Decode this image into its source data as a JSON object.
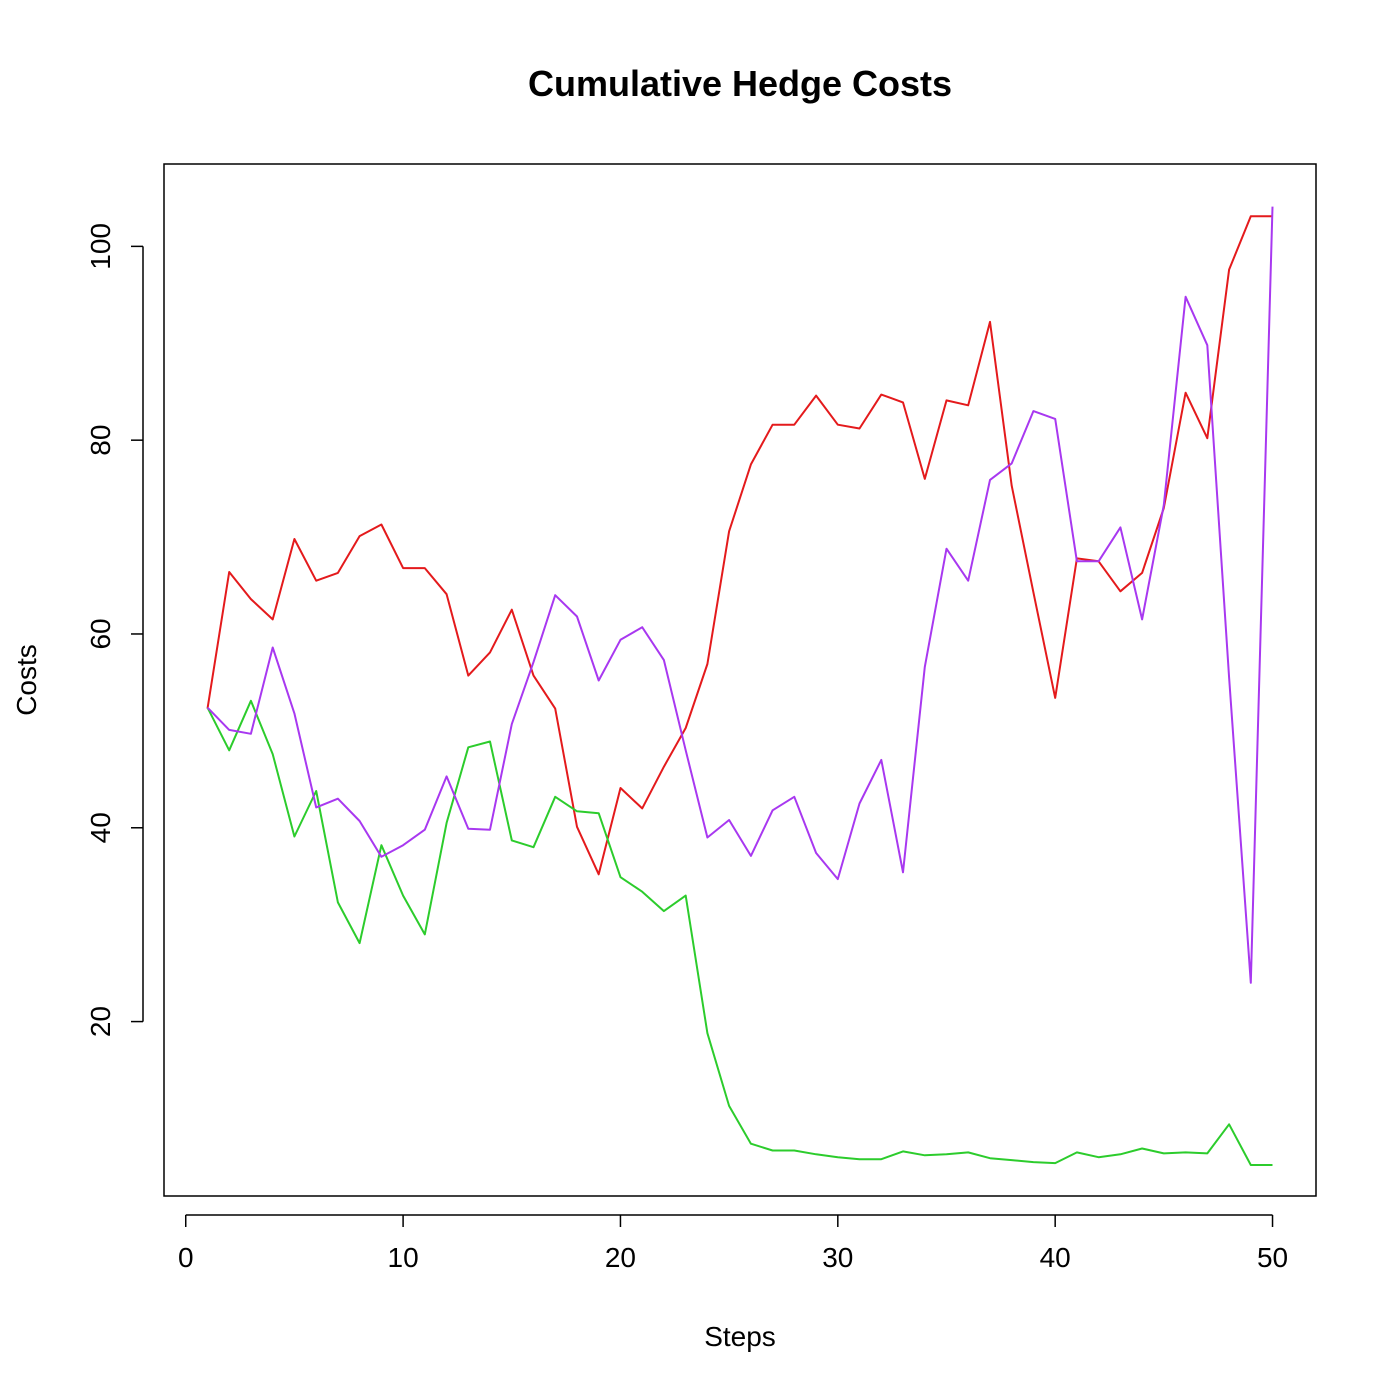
{
  "chart_data": {
    "type": "line",
    "title": "Cumulative Hedge Costs",
    "xlabel": "Steps",
    "ylabel": "Costs",
    "xlim": [
      -1,
      52
    ],
    "ylim": [
      2,
      108.5
    ],
    "x_ticks": [
      0,
      10,
      20,
      30,
      40,
      50
    ],
    "y_ticks": [
      20,
      40,
      60,
      80,
      100
    ],
    "grid": false,
    "legend": "none",
    "x": [
      1,
      2,
      3,
      4,
      5,
      6,
      7,
      8,
      9,
      10,
      11,
      12,
      13,
      14,
      15,
      16,
      17,
      18,
      19,
      20,
      21,
      22,
      23,
      24,
      25,
      26,
      27,
      28,
      29,
      30,
      31,
      32,
      33,
      34,
      35,
      36,
      37,
      38,
      39,
      40,
      41,
      42,
      43,
      44,
      45,
      46,
      47,
      48,
      49,
      50
    ],
    "series": [
      {
        "color": "#e41a1c",
        "values": [
          52.3,
          66.4,
          63.6,
          61.5,
          69.8,
          65.5,
          66.3,
          70.1,
          71.3,
          66.8,
          66.8,
          64.1,
          55.7,
          58.1,
          62.5,
          55.7,
          52.3,
          40.1,
          35.2,
          44.1,
          42.0,
          46.3,
          50.3,
          56.9,
          70.6,
          77.5,
          81.6,
          81.6,
          84.6,
          81.6,
          81.2,
          84.7,
          83.9,
          76.0,
          84.1,
          83.6,
          92.2,
          75.3,
          64.3,
          53.4,
          67.8,
          67.5,
          64.4,
          66.3,
          73.0,
          84.9,
          80.2,
          97.6,
          103.1,
          103.1
        ]
      },
      {
        "color": "#2ccc2c",
        "values": [
          52.4,
          48.0,
          53.1,
          47.6,
          39.1,
          43.8,
          32.3,
          28.1,
          38.2,
          33.0,
          29.0,
          40.5,
          48.3,
          48.9,
          38.7,
          38.0,
          43.2,
          41.7,
          41.5,
          34.9,
          33.4,
          31.4,
          33.0,
          18.8,
          11.3,
          7.4,
          6.7,
          6.7,
          6.3,
          6.0,
          5.8,
          5.8,
          6.6,
          6.2,
          6.3,
          6.5,
          5.9,
          5.7,
          5.5,
          5.4,
          6.5,
          6.0,
          6.3,
          6.9,
          6.4,
          6.5,
          6.4,
          9.4,
          5.2,
          5.2
        ]
      },
      {
        "color": "#a838f0",
        "values": [
          52.4,
          50.1,
          49.7,
          58.6,
          51.8,
          42.1,
          43.0,
          40.7,
          37.0,
          38.2,
          39.8,
          45.3,
          39.9,
          39.8,
          50.7,
          57.1,
          64.0,
          61.8,
          55.2,
          59.4,
          60.7,
          57.3,
          48.0,
          39.0,
          40.8,
          37.1,
          41.8,
          43.2,
          37.4,
          34.7,
          42.5,
          47.0,
          35.4,
          56.6,
          68.8,
          65.5,
          75.9,
          77.6,
          83.0,
          82.2,
          67.5,
          67.5,
          71.0,
          61.5,
          73.3,
          94.8,
          89.8,
          55.5,
          24.0,
          104.1
        ]
      }
    ]
  }
}
